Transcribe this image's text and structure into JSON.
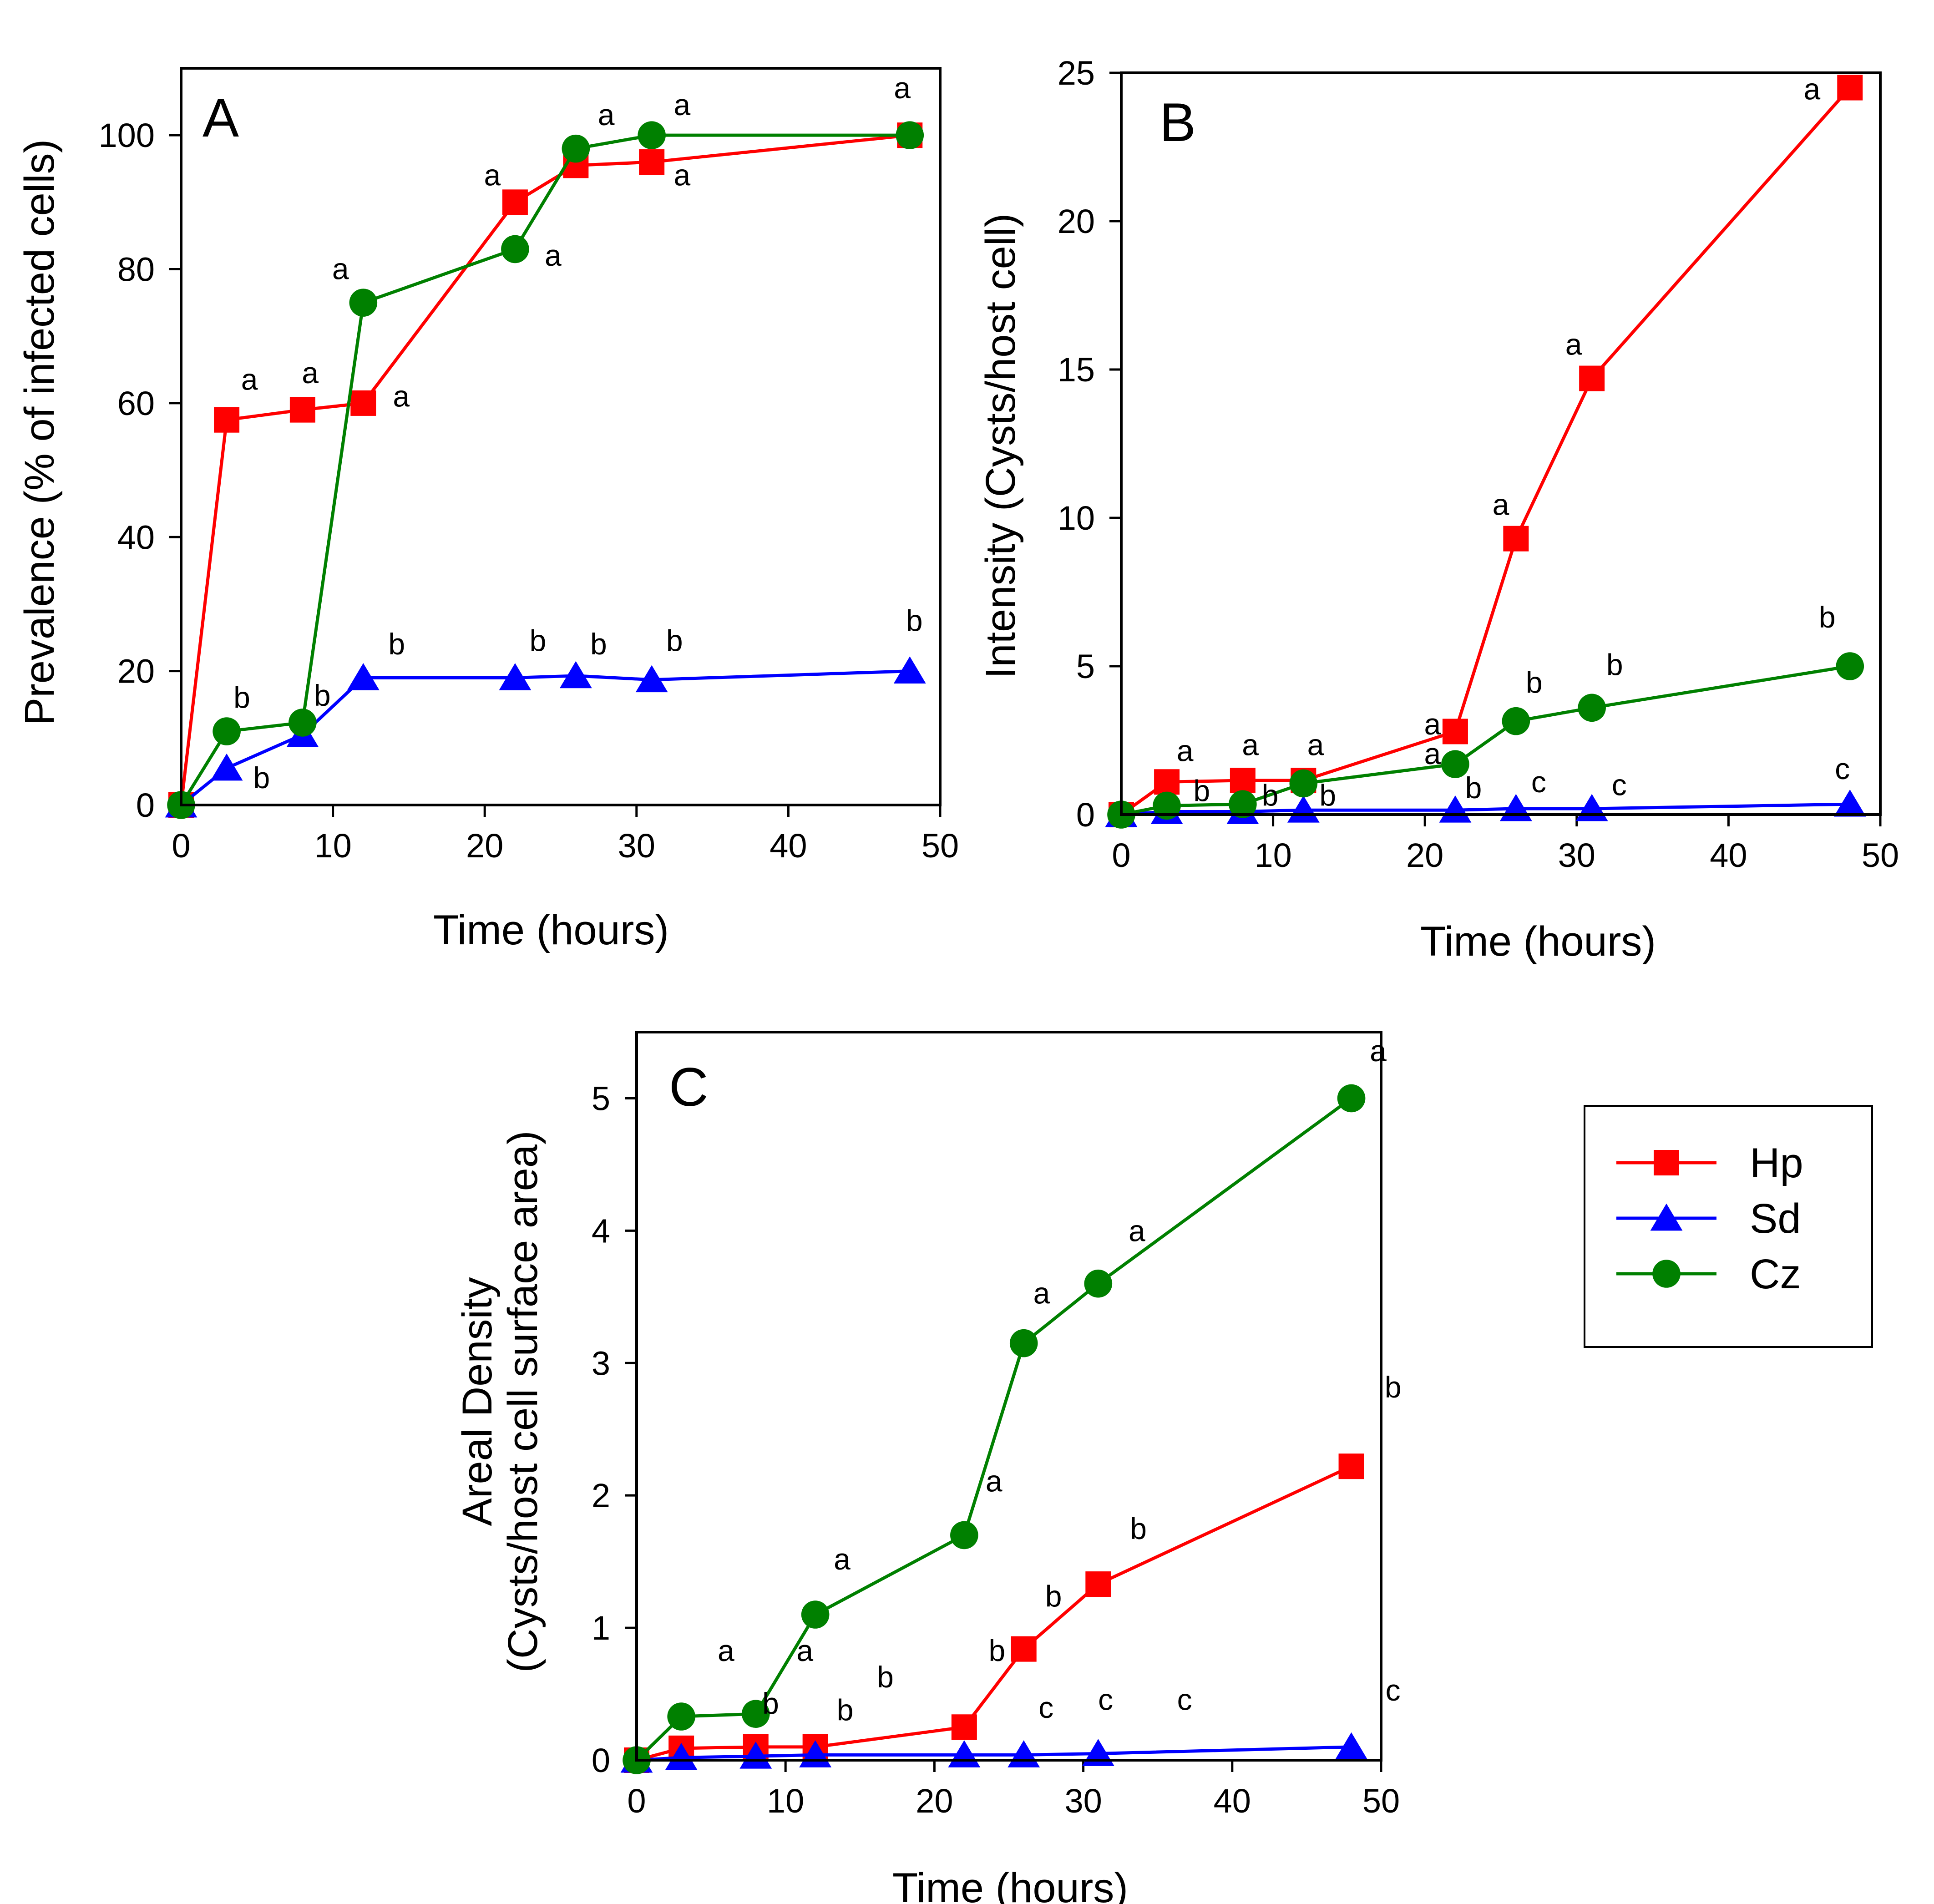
{
  "chart_data": [
    {
      "panel": "A",
      "type": "line",
      "panel_label": "A",
      "xlabel": "Time (hours)",
      "ylabel": "Prevalence (% of infected cells)",
      "xlim": [
        0,
        50
      ],
      "ylim": [
        0,
        110
      ],
      "xticks": [
        0,
        10,
        20,
        30,
        40,
        50
      ],
      "yticks": [
        0,
        20,
        40,
        60,
        80,
        100
      ],
      "grid": false,
      "series": [
        {
          "name": "Hp",
          "color": "#ff0000",
          "marker": "square",
          "x": [
            0,
            3,
            8,
            12,
            22,
            26,
            31,
            48
          ],
          "y": [
            0,
            57.5,
            59,
            60,
            90,
            95.5,
            96,
            100
          ]
        },
        {
          "name": "Sd",
          "color": "#0000ff",
          "marker": "triangle",
          "x": [
            0,
            3,
            8,
            12,
            22,
            26,
            31,
            48
          ],
          "y": [
            0,
            5.5,
            10.5,
            19,
            19,
            19.3,
            18.7,
            20
          ]
        },
        {
          "name": "Cz",
          "color": "#008000",
          "marker": "circle",
          "x": [
            0,
            3,
            8,
            12,
            22,
            26,
            31,
            48
          ],
          "y": [
            0,
            11,
            12.3,
            75,
            83,
            98,
            100,
            100
          ]
        }
      ],
      "annotations": [
        {
          "text": "a",
          "x": 4.5,
          "y": 62
        },
        {
          "text": "a",
          "x": 8.5,
          "y": 63
        },
        {
          "text": "a",
          "x": 14.5,
          "y": 59.5
        },
        {
          "text": "b",
          "x": 4,
          "y": 14.5
        },
        {
          "text": "b",
          "x": 5.3,
          "y": 2.5
        },
        {
          "text": "b",
          "x": 9.3,
          "y": 14.8
        },
        {
          "text": "a",
          "x": 10.5,
          "y": 78.5
        },
        {
          "text": "b",
          "x": 14.2,
          "y": 22.5
        },
        {
          "text": "a",
          "x": 20.5,
          "y": 92.5
        },
        {
          "text": "a",
          "x": 24.5,
          "y": 80.5
        },
        {
          "text": "b",
          "x": 23.5,
          "y": 23
        },
        {
          "text": "a",
          "x": 28,
          "y": 101.5
        },
        {
          "text": "b",
          "x": 27.5,
          "y": 22.5
        },
        {
          "text": "a",
          "x": 33,
          "y": 103
        },
        {
          "text": "a",
          "x": 33,
          "y": 92.5
        },
        {
          "text": "b",
          "x": 32.5,
          "y": 23
        },
        {
          "text": "a",
          "x": 47.5,
          "y": 105.5
        },
        {
          "text": "b",
          "x": 48.3,
          "y": 26
        }
      ]
    },
    {
      "panel": "B",
      "type": "line",
      "panel_label": "B",
      "xlabel": "Time (hours)",
      "ylabel": "Intensity (Cysts/host cell)",
      "xlim": [
        0,
        50
      ],
      "ylim": [
        0,
        25
      ],
      "xticks": [
        0,
        10,
        20,
        30,
        40,
        50
      ],
      "yticks": [
        0,
        5,
        10,
        15,
        20,
        25
      ],
      "grid": false,
      "series": [
        {
          "name": "Hp",
          "color": "#ff0000",
          "marker": "square",
          "x": [
            0,
            3,
            8,
            12,
            22,
            26,
            31,
            48
          ],
          "y": [
            0,
            1.1,
            1.15,
            1.15,
            2.8,
            9.3,
            14.7,
            24.5
          ]
        },
        {
          "name": "Sd",
          "color": "#0000ff",
          "marker": "triangle",
          "x": [
            0,
            3,
            8,
            12,
            22,
            26,
            31,
            48
          ],
          "y": [
            0,
            0.1,
            0.1,
            0.15,
            0.15,
            0.2,
            0.2,
            0.35
          ]
        },
        {
          "name": "Cz",
          "color": "#008000",
          "marker": "circle",
          "x": [
            0,
            3,
            8,
            12,
            22,
            26,
            31,
            48
          ],
          "y": [
            0,
            0.3,
            0.35,
            1.05,
            1.7,
            3.15,
            3.6,
            5
          ]
        }
      ],
      "annotations": [
        {
          "text": "a",
          "x": 4.2,
          "y": 1.8
        },
        {
          "text": "b",
          "x": 5.3,
          "y": 0.45
        },
        {
          "text": "a",
          "x": 8.5,
          "y": 2.0
        },
        {
          "text": "b",
          "x": 9.8,
          "y": 0.3
        },
        {
          "text": "a",
          "x": 12.8,
          "y": 2.0
        },
        {
          "text": "b",
          "x": 13.6,
          "y": 0.3
        },
        {
          "text": "a",
          "x": 20.5,
          "y": 2.7
        },
        {
          "text": "a",
          "x": 20.5,
          "y": 1.7
        },
        {
          "text": "b",
          "x": 23.2,
          "y": 0.55
        },
        {
          "text": "a",
          "x": 25,
          "y": 10.1
        },
        {
          "text": "b",
          "x": 27.2,
          "y": 4.1
        },
        {
          "text": "c",
          "x": 27.5,
          "y": 0.75
        },
        {
          "text": "a",
          "x": 29.8,
          "y": 15.5
        },
        {
          "text": "b",
          "x": 32.5,
          "y": 4.7
        },
        {
          "text": "c",
          "x": 32.8,
          "y": 0.65
        },
        {
          "text": "a",
          "x": 45.5,
          "y": 24.1
        },
        {
          "text": "b",
          "x": 46.5,
          "y": 6.3
        },
        {
          "text": "c",
          "x": 47.5,
          "y": 1.2
        }
      ]
    },
    {
      "panel": "C",
      "type": "line",
      "panel_label": "C",
      "xlabel": "Time (hours)",
      "ylabel": [
        "Areal Density",
        "(Cysts/host cell surface area)"
      ],
      "xlim": [
        0,
        50
      ],
      "ylim": [
        0,
        5.5
      ],
      "xticks": [
        0,
        10,
        20,
        30,
        40,
        50
      ],
      "yticks": [
        0,
        1,
        2,
        3,
        4,
        5
      ],
      "grid": false,
      "series": [
        {
          "name": "Hp",
          "color": "#ff0000",
          "marker": "square",
          "x": [
            0,
            3,
            8,
            12,
            22,
            26,
            31,
            48
          ],
          "y": [
            0,
            0.09,
            0.1,
            0.1,
            0.25,
            0.84,
            1.33,
            2.22
          ]
        },
        {
          "name": "Sd",
          "color": "#0000ff",
          "marker": "triangle",
          "x": [
            0,
            3,
            8,
            12,
            22,
            26,
            31,
            48
          ],
          "y": [
            0,
            0.02,
            0.03,
            0.04,
            0.04,
            0.04,
            0.05,
            0.1
          ]
        },
        {
          "name": "Cz",
          "color": "#008000",
          "marker": "circle",
          "x": [
            0,
            3,
            8,
            12,
            22,
            26,
            31,
            48
          ],
          "y": [
            0,
            0.33,
            0.35,
            1.1,
            1.7,
            3.15,
            3.6,
            5
          ]
        }
      ],
      "annotations": [
        {
          "text": "a",
          "x": 6,
          "y": 0.75
        },
        {
          "text": "a",
          "x": 11.3,
          "y": 0.75
        },
        {
          "text": "b",
          "x": 9,
          "y": 0.35
        },
        {
          "text": "b",
          "x": 14,
          "y": 0.3
        },
        {
          "text": "b",
          "x": 16.7,
          "y": 0.55
        },
        {
          "text": "a",
          "x": 13.8,
          "y": 1.44
        },
        {
          "text": "a",
          "x": 24,
          "y": 2.03
        },
        {
          "text": "b",
          "x": 24.2,
          "y": 0.75
        },
        {
          "text": "c",
          "x": 27.5,
          "y": 0.32
        },
        {
          "text": "a",
          "x": 27.2,
          "y": 3.45
        },
        {
          "text": "b",
          "x": 28,
          "y": 1.16
        },
        {
          "text": "c",
          "x": 31.5,
          "y": 0.38
        },
        {
          "text": "a",
          "x": 33.6,
          "y": 3.92
        },
        {
          "text": "b",
          "x": 33.7,
          "y": 1.67
        },
        {
          "text": "c",
          "x": 36.8,
          "y": 0.38
        },
        {
          "text": "a",
          "x": 49.8,
          "y": 5.28
        },
        {
          "text": "b",
          "x": 50.8,
          "y": 2.74
        },
        {
          "text": "c",
          "x": 50.8,
          "y": 0.45
        }
      ]
    }
  ],
  "legend": {
    "placement": "right of panel C",
    "entries": [
      {
        "label": "Hp",
        "color": "#ff0000",
        "marker": "square"
      },
      {
        "label": "Sd",
        "color": "#0000ff",
        "marker": "triangle"
      },
      {
        "label": "Cz",
        "color": "#008000",
        "marker": "circle"
      }
    ]
  }
}
